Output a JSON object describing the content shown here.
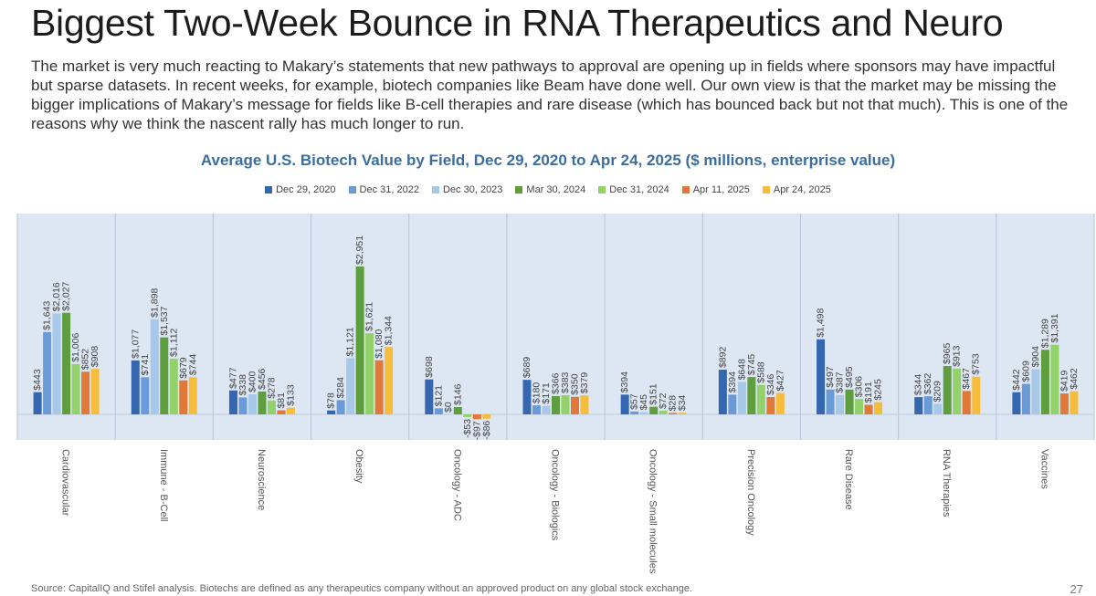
{
  "slide": {
    "title": "Biggest Two-Week Bounce in RNA Therapeutics and Neuro",
    "body": "The market is very much reacting to Makary’s statements that new pathways to approval are opening up in fields where sponsors may have impactful but sparse datasets. In recent weeks, for example, biotech companies like Beam have done well. Our own view is that the market may be missing the bigger implications of Makary’s message for fields like B-cell therapies and rare disease (which has bounced back but not that much). This is one of the reasons why we think the nascent rally has much longer to run.",
    "source": "Source: CapitalIQ and Stifel analysis. Biotechs are defined as any therapeutics company without an approved product on any global stock exchange.",
    "page_number": "27"
  },
  "colors": {
    "panel_background": "#dde7f4",
    "panel_divider": "#b3c3d8"
  },
  "chart_data": {
    "type": "bar",
    "title": "Average U.S. Biotech Value by Field, Dec 29, 2020 to Apr 24, 2025 ($ millions, enterprise value)",
    "ylim": [
      -100,
      3250
    ],
    "grid": false,
    "legend_position": "top",
    "categories": [
      "Cardiovascular",
      "Immune - B-Cell",
      "Neuroscience",
      "Obesity",
      "Oncology - ADC",
      "Oncology - Biologics",
      "Oncology - Small molecules",
      "Precision Oncology",
      "Rare Disease",
      "RNA Therapies",
      "Vaccines"
    ],
    "series": [
      {
        "name": "Dec 29, 2020",
        "color": "#3566b0",
        "values": [
          443,
          1077,
          477,
          78,
          698,
          689,
          394,
          892,
          1498,
          344,
          442
        ],
        "labels": [
          "$443",
          "$1,077",
          "$477",
          "$78",
          "$698",
          "$689",
          "$394",
          "$892",
          "$1,498",
          "$344",
          "$442"
        ]
      },
      {
        "name": "Dec 31, 2022",
        "color": "#6a9bd8",
        "values": [
          1643,
          741,
          338,
          284,
          121,
          180,
          57,
          394,
          497,
          362,
          609
        ],
        "labels": [
          "$1,643",
          "$741",
          "$338",
          "$284",
          "$121",
          "$180",
          "$57",
          "$394",
          "$497",
          "$362",
          "$609"
        ]
      },
      {
        "name": "Dec 30, 2023",
        "color": "#a8c8ea",
        "values": [
          2016,
          1898,
          400,
          1121,
          0,
          171,
          45,
          648,
          387,
          209,
          904
        ],
        "labels": [
          "$2,016",
          "$1,898",
          "$400",
          "$1,121",
          "$0",
          "$171",
          "$45",
          "$648",
          "$387",
          "$209",
          "$904"
        ]
      },
      {
        "name": "Mar 30, 2024",
        "color": "#5e9e3e",
        "values": [
          2027,
          1537,
          456,
          2951,
          146,
          366,
          151,
          745,
          495,
          965,
          1289
        ],
        "labels": [
          "$2,027",
          "$1,537",
          "$456",
          "$2,951",
          "$146",
          "$366",
          "$151",
          "$745",
          "$495",
          "$965",
          "$1,289"
        ]
      },
      {
        "name": "Dec 31, 2024",
        "color": "#93d26a",
        "values": [
          1006,
          1112,
          278,
          1621,
          -53,
          383,
          72,
          588,
          306,
          913,
          1391
        ],
        "labels": [
          "$1,006",
          "$1,112",
          "$278",
          "$1,621",
          "-$53",
          "$383",
          "$72",
          "$588",
          "$306",
          "$913",
          "$1,391"
        ]
      },
      {
        "name": "Apr 11, 2025",
        "color": "#e07838",
        "values": [
          852,
          679,
          81,
          1080,
          -97,
          350,
          28,
          346,
          191,
          467,
          419
        ],
        "labels": [
          "$852",
          "$679",
          "$81",
          "$1,080",
          "-$97",
          "$350",
          "$28",
          "$346",
          "$191",
          "$467",
          "$419"
        ]
      },
      {
        "name": "Apr 24, 2025",
        "color": "#f6bd3c",
        "values": [
          908,
          744,
          133,
          1344,
          -86,
          379,
          34,
          427,
          245,
          753,
          462
        ],
        "labels": [
          "$908",
          "$744",
          "$133",
          "$1,344",
          "-$86",
          "$379",
          "$34",
          "$427",
          "$245",
          "$753",
          "$462"
        ]
      }
    ]
  }
}
